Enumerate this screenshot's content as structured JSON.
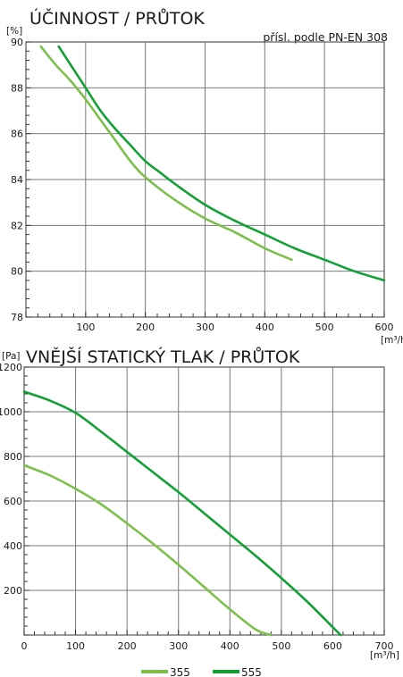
{
  "chart_data": [
    {
      "type": "line",
      "title": "ÚČINNOST / PRŮTOK",
      "subtitle": "přísl. podle PN-EN 308",
      "ylabel": "[%]",
      "xlabel": "[m³/h]",
      "xlim": [
        0,
        600
      ],
      "ylim": [
        78,
        90
      ],
      "xticks": [
        "100",
        "200",
        "300",
        "400",
        "500",
        "600"
      ],
      "yticks": [
        "78",
        "80",
        "82",
        "84",
        "86",
        "88",
        "90"
      ],
      "grid": true,
      "series": [
        {
          "name": "355",
          "color": "#7cc04b",
          "x": [
            25,
            50,
            75,
            100,
            125,
            150,
            175,
            200,
            250,
            300,
            350,
            400,
            445
          ],
          "y": [
            89.8,
            89.0,
            88.3,
            87.5,
            86.6,
            85.7,
            84.8,
            84.1,
            83.1,
            82.3,
            81.7,
            81.0,
            80.5
          ]
        },
        {
          "name": "555",
          "color": "#13a035",
          "x": [
            55,
            75,
            100,
            125,
            150,
            175,
            200,
            225,
            250,
            300,
            350,
            400,
            450,
            500,
            550,
            600
          ],
          "y": [
            89.8,
            89.0,
            88.0,
            87.0,
            86.2,
            85.5,
            84.8,
            84.3,
            83.8,
            82.9,
            82.2,
            81.6,
            81.0,
            80.5,
            80.0,
            79.6
          ]
        }
      ]
    },
    {
      "type": "line",
      "title": "VNĚJŠÍ STATICKÝ TLAK / PRŮTOK",
      "ylabel": "[Pa]",
      "xlabel": "[m³/h]",
      "xlim": [
        0,
        700
      ],
      "ylim": [
        0,
        1200
      ],
      "xticks": [
        "0",
        "100",
        "200",
        "300",
        "400",
        "500",
        "600",
        "700"
      ],
      "yticks": [
        "200",
        "400",
        "600",
        "800",
        "1000",
        "1200"
      ],
      "grid": true,
      "series": [
        {
          "name": "355",
          "color": "#7cc04b",
          "x": [
            0,
            50,
            100,
            150,
            200,
            250,
            300,
            350,
            400,
            450,
            480
          ],
          "y": [
            760,
            715,
            655,
            585,
            500,
            410,
            315,
            215,
            115,
            25,
            0
          ]
        },
        {
          "name": "555",
          "color": "#13a035",
          "x": [
            0,
            50,
            100,
            150,
            200,
            250,
            300,
            350,
            400,
            450,
            500,
            550,
            600,
            615
          ],
          "y": [
            1090,
            1050,
            995,
            910,
            820,
            730,
            640,
            545,
            450,
            355,
            255,
            150,
            35,
            0
          ]
        }
      ]
    }
  ],
  "legend": {
    "position": "bottom-center",
    "items": [
      {
        "label": "355",
        "color": "#7cc04b"
      },
      {
        "label": "555",
        "color": "#13a035"
      }
    ]
  }
}
